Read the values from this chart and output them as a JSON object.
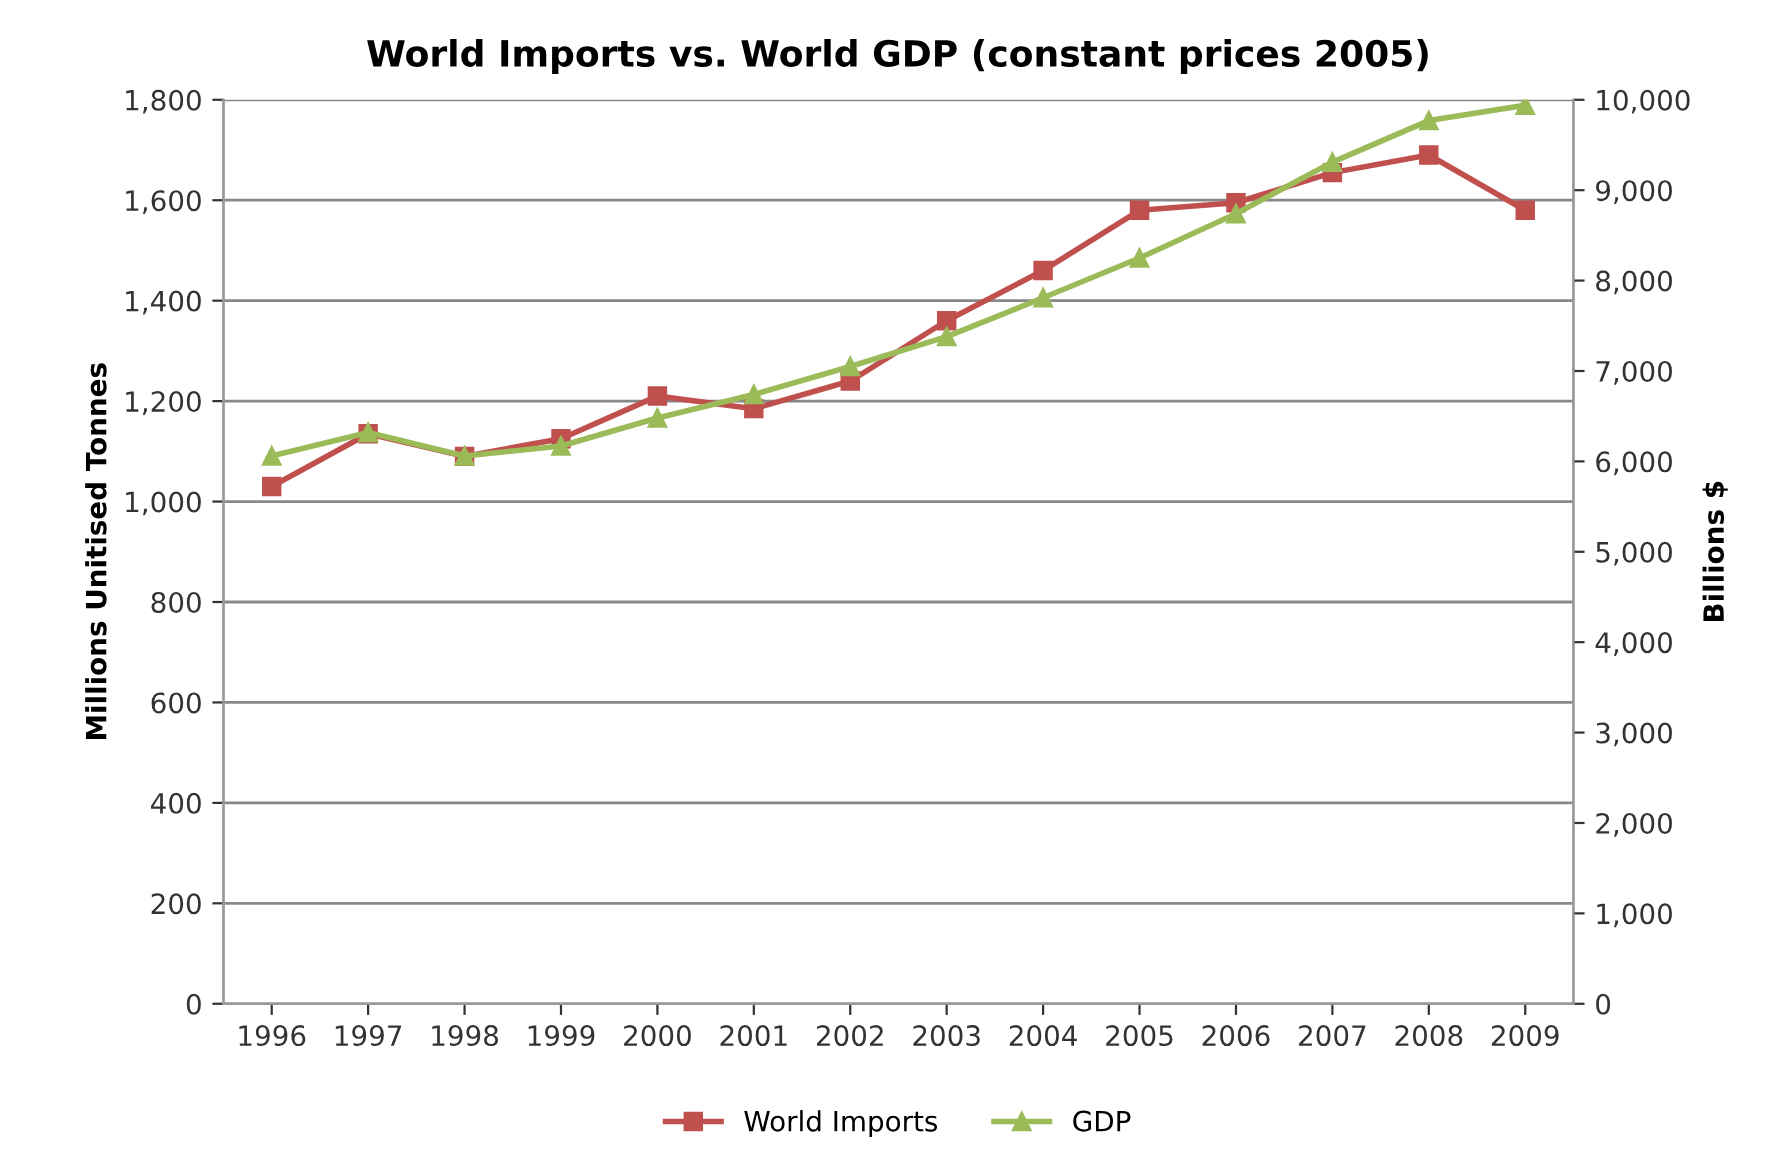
{
  "chart_data": {
    "type": "line",
    "title": "World Imports vs. World GDP (constant prices 2005)",
    "ylabel": "Millions Unitised Tonnes",
    "y2label": "Billions $",
    "categories": [
      "1996",
      "1997",
      "1998",
      "1999",
      "2000",
      "2001",
      "2002",
      "2003",
      "2004",
      "2005",
      "2006",
      "2007",
      "2008",
      "2009"
    ],
    "series": [
      {
        "name": "World Imports",
        "color": "#c0504d",
        "marker": "square",
        "values": [
          1030,
          1135,
          1090,
          1125,
          1210,
          1185,
          1240,
          1360,
          1460,
          1580,
          1595,
          1655,
          1690,
          1580
        ]
      },
      {
        "name": "GDP",
        "color": "#9bbb59",
        "marker": "triangle",
        "axis": "y2",
        "values": [
          6060,
          6320,
          6060,
          6170,
          6480,
          6740,
          7050,
          7380,
          7810,
          8250,
          8740,
          9310,
          9770,
          9940
        ]
      }
    ],
    "ylim": [
      0,
      1800
    ],
    "yticks": [
      {
        "value": 0,
        "label": "0"
      },
      {
        "value": 200,
        "label": "200"
      },
      {
        "value": 400,
        "label": "400"
      },
      {
        "value": 600,
        "label": "600"
      },
      {
        "value": 800,
        "label": "800"
      },
      {
        "value": 1000,
        "label": "1,000"
      },
      {
        "value": 1200,
        "label": "1,200"
      },
      {
        "value": 1400,
        "label": "1,400"
      },
      {
        "value": 1600,
        "label": "1,600"
      },
      {
        "value": 1800,
        "label": "1,800"
      }
    ],
    "y2lim": [
      0,
      10000
    ],
    "y2ticks": [
      {
        "value": 0,
        "label": "0"
      },
      {
        "value": 1000,
        "label": "1,000"
      },
      {
        "value": 2000,
        "label": "2,000"
      },
      {
        "value": 3000,
        "label": "3,000"
      },
      {
        "value": 4000,
        "label": "4,000"
      },
      {
        "value": 5000,
        "label": "5,000"
      },
      {
        "value": 6000,
        "label": "6,000"
      },
      {
        "value": 7000,
        "label": "7,000"
      },
      {
        "value": 8000,
        "label": "8,000"
      },
      {
        "value": 9000,
        "label": "9,000"
      },
      {
        "value": 10000,
        "label": "10,000"
      }
    ],
    "grid": "y",
    "legend": "bottom",
    "line_style": "solid"
  }
}
